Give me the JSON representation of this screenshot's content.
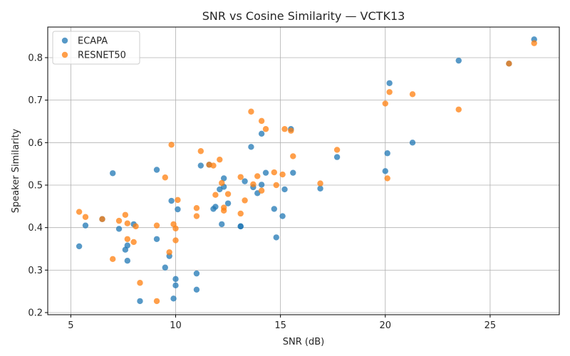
{
  "chart_data": {
    "type": "scatter",
    "title": "SNR vs Cosine Similarity — VCTK13",
    "xlabel": "SNR (dB)",
    "ylabel": "Speaker Similarity",
    "xlim": [
      3.9,
      28.3
    ],
    "ylim": [
      0.195,
      0.872
    ],
    "xticks": [
      5,
      10,
      15,
      20,
      25
    ],
    "xtick_labels": [
      "5",
      "10",
      "15",
      "20",
      "25"
    ],
    "yticks": [
      0.2,
      0.3,
      0.4,
      0.5,
      0.6,
      0.7,
      0.8
    ],
    "ytick_labels": [
      "0.2",
      "0.3",
      "0.4",
      "0.5",
      "0.6",
      "0.7",
      "0.8"
    ],
    "grid": true,
    "legend_position": "top-left",
    "series": [
      {
        "name": "ECAPA",
        "color": "#1f77b4",
        "points": [
          [
            5.4,
            0.356
          ],
          [
            5.7,
            0.405
          ],
          [
            6.5,
            0.42
          ],
          [
            7.0,
            0.528
          ],
          [
            7.3,
            0.397
          ],
          [
            7.6,
            0.348
          ],
          [
            7.7,
            0.322
          ],
          [
            7.7,
            0.358
          ],
          [
            8.0,
            0.408
          ],
          [
            8.3,
            0.227
          ],
          [
            9.1,
            0.536
          ],
          [
            9.1,
            0.373
          ],
          [
            9.5,
            0.306
          ],
          [
            9.7,
            0.333
          ],
          [
            9.8,
            0.463
          ],
          [
            9.9,
            0.233
          ],
          [
            10.0,
            0.279
          ],
          [
            10.0,
            0.264
          ],
          [
            10.1,
            0.443
          ],
          [
            11.0,
            0.292
          ],
          [
            11.0,
            0.254
          ],
          [
            11.2,
            0.546
          ],
          [
            11.6,
            0.548
          ],
          [
            11.8,
            0.444
          ],
          [
            11.9,
            0.449
          ],
          [
            12.1,
            0.49
          ],
          [
            12.2,
            0.408
          ],
          [
            12.3,
            0.496
          ],
          [
            12.3,
            0.516
          ],
          [
            12.5,
            0.457
          ],
          [
            13.1,
            0.403
          ],
          [
            13.1,
            0.403
          ],
          [
            13.3,
            0.509
          ],
          [
            13.6,
            0.59
          ],
          [
            13.7,
            0.495
          ],
          [
            13.9,
            0.481
          ],
          [
            14.1,
            0.621
          ],
          [
            14.1,
            0.501
          ],
          [
            14.3,
            0.529
          ],
          [
            14.7,
            0.444
          ],
          [
            14.8,
            0.377
          ],
          [
            15.1,
            0.427
          ],
          [
            15.2,
            0.49
          ],
          [
            15.5,
            0.632
          ],
          [
            15.6,
            0.529
          ],
          [
            16.9,
            0.492
          ],
          [
            17.7,
            0.566
          ],
          [
            20.0,
            0.533
          ],
          [
            20.1,
            0.575
          ],
          [
            20.2,
            0.74
          ],
          [
            21.3,
            0.6
          ],
          [
            23.5,
            0.793
          ],
          [
            25.9,
            0.786
          ],
          [
            27.1,
            0.843
          ]
        ]
      },
      {
        "name": "RESNET50",
        "color": "#ff7f0e",
        "points": [
          [
            5.4,
            0.437
          ],
          [
            5.7,
            0.425
          ],
          [
            6.5,
            0.42
          ],
          [
            7.0,
            0.326
          ],
          [
            7.3,
            0.416
          ],
          [
            7.6,
            0.43
          ],
          [
            7.7,
            0.373
          ],
          [
            7.7,
            0.41
          ],
          [
            8.0,
            0.366
          ],
          [
            8.1,
            0.403
          ],
          [
            8.3,
            0.27
          ],
          [
            9.1,
            0.405
          ],
          [
            9.1,
            0.227
          ],
          [
            9.5,
            0.518
          ],
          [
            9.7,
            0.342
          ],
          [
            9.8,
            0.595
          ],
          [
            9.9,
            0.408
          ],
          [
            10.0,
            0.398
          ],
          [
            10.0,
            0.37
          ],
          [
            10.1,
            0.465
          ],
          [
            11.0,
            0.446
          ],
          [
            11.0,
            0.427
          ],
          [
            11.2,
            0.58
          ],
          [
            11.6,
            0.548
          ],
          [
            11.8,
            0.546
          ],
          [
            11.9,
            0.477
          ],
          [
            12.1,
            0.56
          ],
          [
            12.2,
            0.505
          ],
          [
            12.3,
            0.44
          ],
          [
            12.3,
            0.447
          ],
          [
            12.5,
            0.479
          ],
          [
            13.1,
            0.519
          ],
          [
            13.1,
            0.433
          ],
          [
            13.3,
            0.464
          ],
          [
            13.6,
            0.673
          ],
          [
            13.7,
            0.502
          ],
          [
            13.9,
            0.521
          ],
          [
            14.1,
            0.651
          ],
          [
            14.1,
            0.487
          ],
          [
            14.3,
            0.632
          ],
          [
            14.7,
            0.53
          ],
          [
            14.8,
            0.5
          ],
          [
            15.1,
            0.525
          ],
          [
            15.2,
            0.632
          ],
          [
            15.5,
            0.628
          ],
          [
            15.6,
            0.568
          ],
          [
            16.9,
            0.504
          ],
          [
            17.7,
            0.583
          ],
          [
            20.0,
            0.692
          ],
          [
            20.1,
            0.516
          ],
          [
            20.2,
            0.719
          ],
          [
            21.3,
            0.714
          ],
          [
            23.5,
            0.678
          ],
          [
            25.9,
            0.786
          ],
          [
            27.1,
            0.834
          ]
        ]
      }
    ]
  }
}
